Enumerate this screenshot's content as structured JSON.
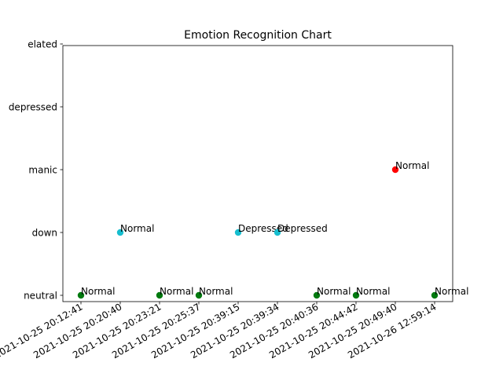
{
  "chart_data": {
    "type": "scatter",
    "title": "Emotion Recognition Chart",
    "xlabel": "",
    "ylabel": "",
    "x_categories": [
      "2021-10-25 20:12:41",
      "2021-10-25 20:20:40",
      "2021-10-25 20:23:21",
      "2021-10-25 20:25:37",
      "2021-10-25 20:39:15",
      "2021-10-25 20:39:34",
      "2021-10-25 20:40:36",
      "2021-10-25 20:44:42",
      "2021-10-25 20:49:40",
      "2021-10-26 12:59:14"
    ],
    "y_categories": [
      "neutral",
      "down",
      "manic",
      "depressed",
      "elated"
    ],
    "grid": false,
    "legend": "none",
    "points": [
      {
        "x": "2021-10-25 20:12:41",
        "y": "neutral",
        "color": "#007a0f",
        "label": "Normal"
      },
      {
        "x": "2021-10-25 20:20:40",
        "y": "down",
        "color": "#17becf",
        "label": "Normal"
      },
      {
        "x": "2021-10-25 20:23:21",
        "y": "neutral",
        "color": "#007a0f",
        "label": "Normal"
      },
      {
        "x": "2021-10-25 20:25:37",
        "y": "neutral",
        "color": "#007a0f",
        "label": "Normal"
      },
      {
        "x": "2021-10-25 20:39:15",
        "y": "down",
        "color": "#17becf",
        "label": "Depressed"
      },
      {
        "x": "2021-10-25 20:39:34",
        "y": "down",
        "color": "#17becf",
        "label": "Depressed"
      },
      {
        "x": "2021-10-25 20:40:36",
        "y": "neutral",
        "color": "#007a0f",
        "label": "Normal"
      },
      {
        "x": "2021-10-25 20:44:42",
        "y": "neutral",
        "color": "#007a0f",
        "label": "Normal"
      },
      {
        "x": "2021-10-25 20:49:40",
        "y": "manic",
        "color": "#ff0000",
        "label": "Normal"
      },
      {
        "x": "2021-10-26 12:59:14",
        "y": "neutral",
        "color": "#007a0f",
        "label": "Normal"
      }
    ]
  }
}
